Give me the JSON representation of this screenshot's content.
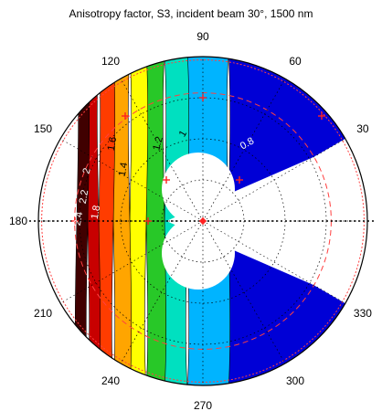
{
  "chart_data": {
    "type": "polar-contour",
    "title": "Anisotropy factor, S3, incident beam 30°, 1500 nm",
    "angular_ticks": [
      "0",
      "30",
      "60",
      "90",
      "120",
      "150",
      "180",
      "210",
      "240",
      "270",
      "300",
      "330"
    ],
    "radial_range": [
      0,
      1
    ],
    "contour_levels": [
      0.8,
      1,
      1.2,
      1.4,
      1.6,
      1.8,
      2,
      2.2,
      2.4
    ],
    "contour_labels": [
      "0.8",
      "1",
      "1.2",
      "1.4",
      "1.6",
      "1.8",
      "2",
      "2.2",
      "2.4"
    ],
    "colormap": [
      "#0000d6",
      "#00b4ff",
      "#00e0c0",
      "#28c828",
      "#ffff00",
      "#ffa500",
      "#ff3c00",
      "#c80000",
      "#400000"
    ],
    "grid": true,
    "blank_region": "notch around center opening toward 0°"
  }
}
